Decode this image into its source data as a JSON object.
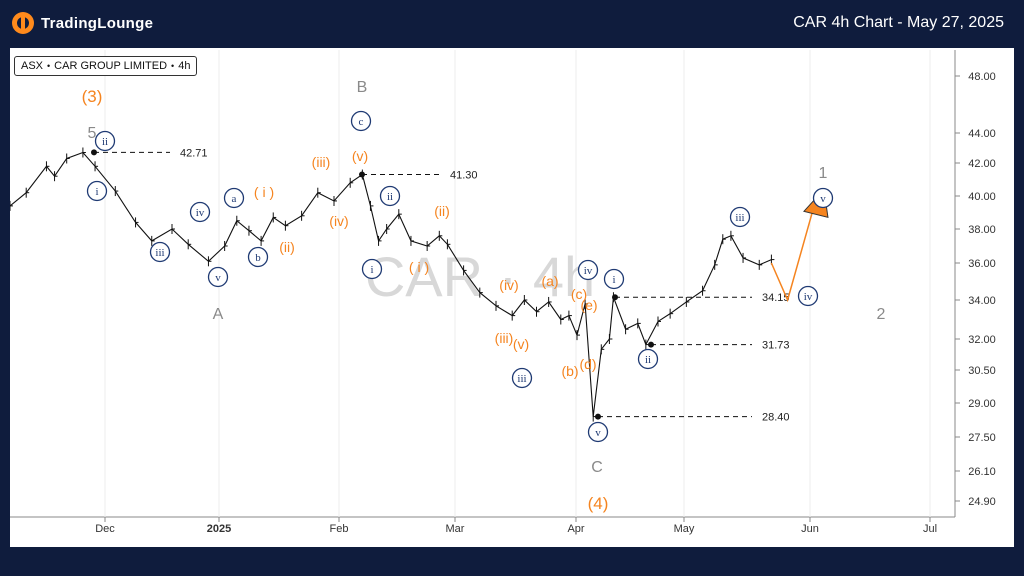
{
  "header": {
    "logo_text": "TradingLounge",
    "title": "CAR 4h Chart - May 27, 2025"
  },
  "legend": {
    "exchange": "ASX",
    "name": "CAR GROUP LIMITED",
    "interval": "4h",
    "separator": "•"
  },
  "watermark": "CAR · 4h",
  "colors": {
    "orange": "#f5841f",
    "navy": "#1f3a73",
    "gray": "#8a8a8a",
    "background": "#0f1c3d"
  },
  "chart_data": {
    "type": "line",
    "title": "CAR 4h Chart - May 27, 2025",
    "y_ticks": [
      "48.00",
      "44.00",
      "42.00",
      "40.00",
      "38.00",
      "36.00",
      "34.00",
      "32.00",
      "30.50",
      "29.00",
      "27.50",
      "26.10",
      "24.90"
    ],
    "x_ticks": [
      "Dec",
      "2025",
      "Feb",
      "Mar",
      "Apr",
      "May",
      "Jun",
      "Jul"
    ],
    "price_path": [
      [
        0,
        39.4
      ],
      [
        4,
        40.2
      ],
      [
        9,
        41.8
      ],
      [
        11,
        41.2
      ],
      [
        14,
        42.3
      ],
      [
        18,
        42.7
      ],
      [
        21,
        41.8
      ],
      [
        26,
        40.3
      ],
      [
        31,
        38.4
      ],
      [
        35,
        37.3
      ],
      [
        40,
        38.0
      ],
      [
        44,
        37.1
      ],
      [
        49,
        36.1
      ],
      [
        53,
        37.0
      ],
      [
        56,
        38.5
      ],
      [
        59,
        37.9
      ],
      [
        62,
        37.3
      ],
      [
        65,
        38.7
      ],
      [
        68,
        38.2
      ],
      [
        72,
        38.8
      ],
      [
        76,
        40.2
      ],
      [
        80,
        39.7
      ],
      [
        84,
        40.8
      ],
      [
        87,
        41.3
      ],
      [
        89,
        39.4
      ],
      [
        91,
        37.3
      ],
      [
        93,
        38.0
      ],
      [
        96,
        38.9
      ],
      [
        99,
        37.3
      ],
      [
        103,
        37.0
      ],
      [
        106,
        37.6
      ],
      [
        108,
        37.1
      ],
      [
        112,
        35.6
      ],
      [
        116,
        34.4
      ],
      [
        120,
        33.7
      ],
      [
        124,
        33.2
      ],
      [
        127,
        34.0
      ],
      [
        130,
        33.4
      ],
      [
        133,
        33.9
      ],
      [
        136,
        33.0
      ],
      [
        138,
        33.2
      ],
      [
        140,
        32.2
      ],
      [
        142,
        33.8
      ],
      [
        144,
        28.4
      ],
      [
        146,
        31.5
      ],
      [
        148,
        32.0
      ],
      [
        149,
        34.15
      ],
      [
        152,
        32.5
      ],
      [
        155,
        32.8
      ],
      [
        157,
        31.73
      ],
      [
        160,
        32.9
      ],
      [
        163,
        33.3
      ],
      [
        167,
        33.9
      ],
      [
        171,
        34.5
      ],
      [
        174,
        35.9
      ],
      [
        176,
        37.4
      ],
      [
        178,
        37.6
      ],
      [
        181,
        36.3
      ],
      [
        185,
        35.9
      ],
      [
        188,
        36.2
      ]
    ],
    "levels": [
      {
        "label": "42.71",
        "value": 42.71
      },
      {
        "label": "41.30",
        "value": 41.3
      },
      {
        "label": "34.15",
        "value": 34.15
      },
      {
        "label": "31.73",
        "value": 31.73
      },
      {
        "label": "28.40",
        "value": 28.4
      }
    ],
    "projection": {
      "from": 36.0,
      "low": 34.0,
      "high": 39.8
    },
    "wave_labels": [
      {
        "text": "(3)",
        "style": "orange-paren"
      },
      {
        "text": "5",
        "style": "gray"
      },
      {
        "text": "ii",
        "style": "navy-circle"
      },
      {
        "text": "i",
        "style": "navy-circle"
      },
      {
        "text": "iii",
        "style": "navy-circle"
      },
      {
        "text": "iv",
        "style": "navy-circle"
      },
      {
        "text": "v",
        "style": "navy-circle"
      },
      {
        "text": "A",
        "style": "gray"
      },
      {
        "text": "a",
        "style": "navy-circle"
      },
      {
        "text": "b",
        "style": "navy-circle"
      },
      {
        "text": "( i )",
        "style": "orange"
      },
      {
        "text": "(ii)",
        "style": "orange"
      },
      {
        "text": "(iii)",
        "style": "orange"
      },
      {
        "text": "(iv)",
        "style": "orange"
      },
      {
        "text": "(v)",
        "style": "orange"
      },
      {
        "text": "B",
        "style": "gray"
      },
      {
        "text": "c",
        "style": "navy-circle"
      },
      {
        "text": "ii",
        "style": "navy-circle"
      },
      {
        "text": "i",
        "style": "navy-circle"
      },
      {
        "text": "( i )",
        "style": "orange"
      },
      {
        "text": "(ii)",
        "style": "orange"
      },
      {
        "text": "(iv)",
        "style": "orange"
      },
      {
        "text": "(iii)",
        "style": "orange"
      },
      {
        "text": "(v)",
        "style": "orange"
      },
      {
        "text": "iii",
        "style": "navy-circle"
      },
      {
        "text": "(a)",
        "style": "orange"
      },
      {
        "text": "(c)",
        "style": "orange"
      },
      {
        "text": "(e)",
        "style": "orange"
      },
      {
        "text": "(b)",
        "style": "orange"
      },
      {
        "text": "(d)",
        "style": "orange"
      },
      {
        "text": "iv",
        "style": "navy-circle"
      },
      {
        "text": "v",
        "style": "navy-circle"
      },
      {
        "text": "C",
        "style": "gray"
      },
      {
        "text": "(4)",
        "style": "orange-paren"
      },
      {
        "text": "i",
        "style": "navy-circle"
      },
      {
        "text": "ii",
        "style": "navy-circle"
      },
      {
        "text": "iii",
        "style": "navy-circle"
      },
      {
        "text": "iv",
        "style": "navy-circle"
      },
      {
        "text": "v",
        "style": "navy-circle"
      },
      {
        "text": "1",
        "style": "gray"
      },
      {
        "text": "2",
        "style": "gray"
      }
    ]
  }
}
